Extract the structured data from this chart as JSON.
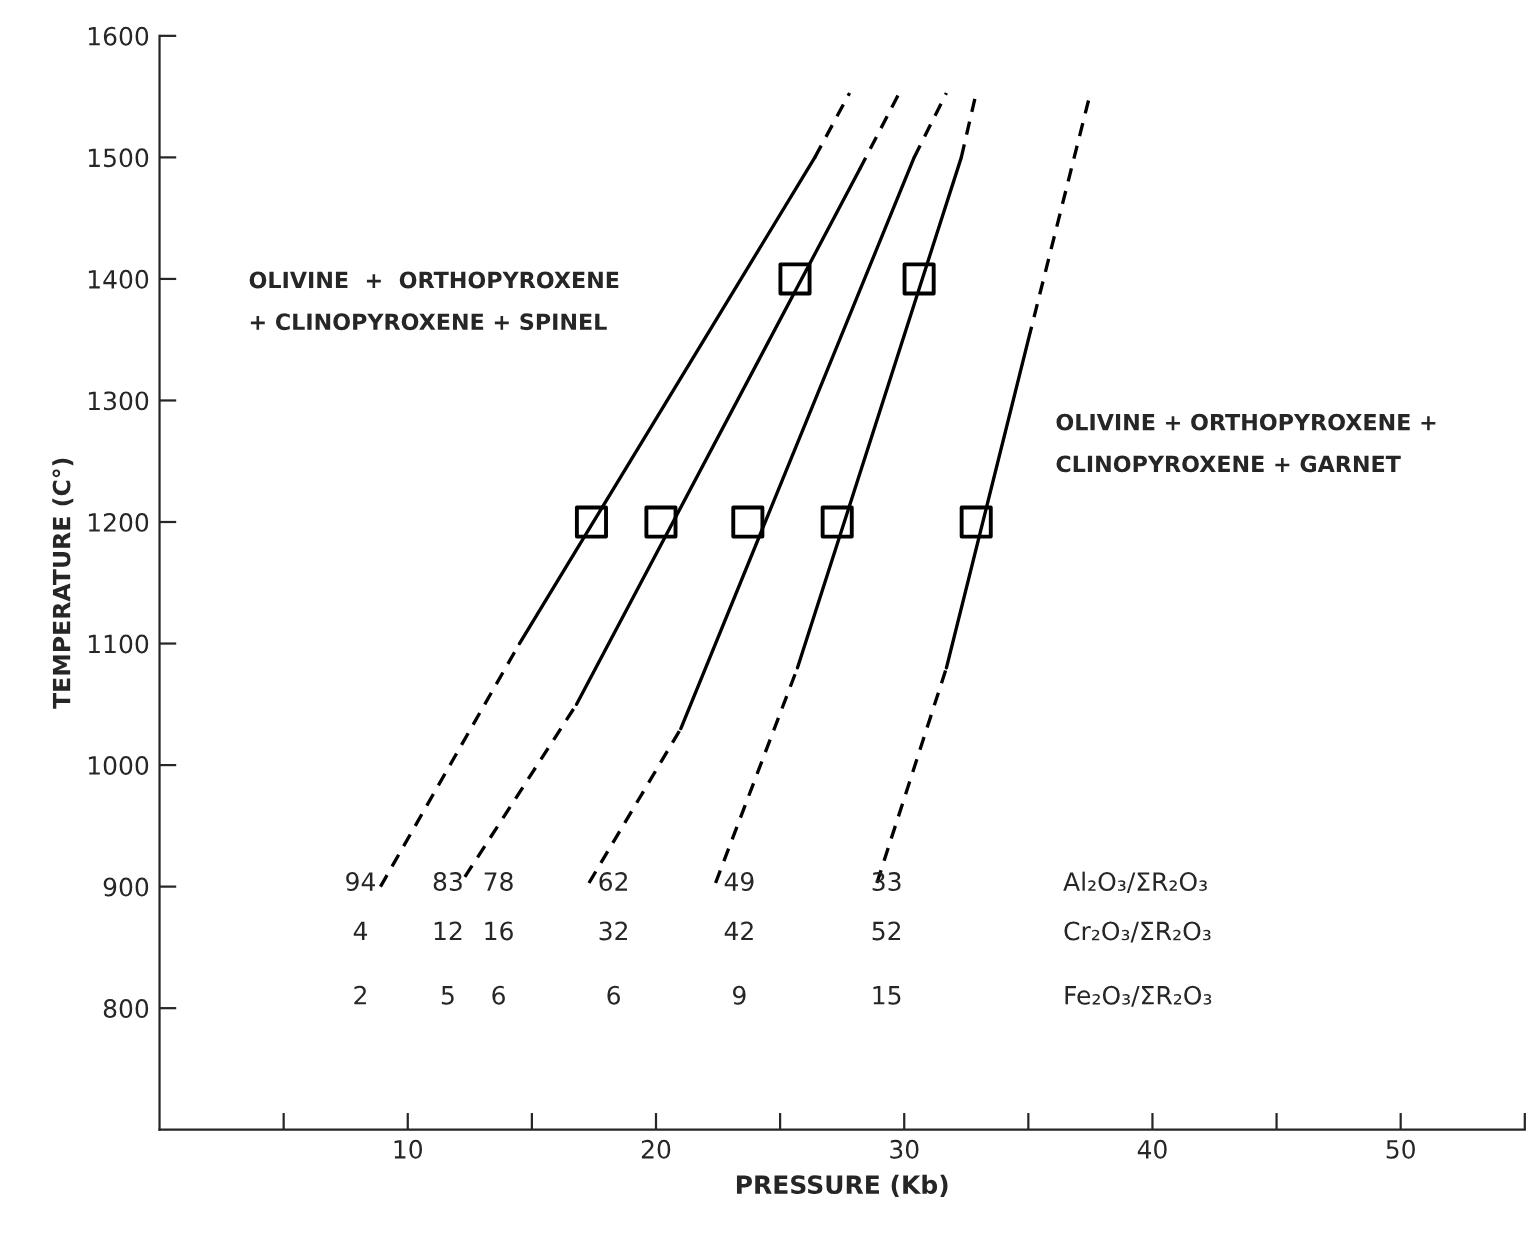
{
  "chart_data": {
    "type": "line",
    "xlabel": "PRESSURE (Kb)",
    "ylabel": "TEMPERATURE (C°)",
    "xlim": [
      0,
      55
    ],
    "ylim": [
      700,
      1600
    ],
    "xticks": [
      {
        "value": 5,
        "label": null
      },
      10,
      {
        "value": 15,
        "label": null
      },
      20,
      {
        "value": 25,
        "label": null
      },
      30,
      {
        "value": 35,
        "label": null
      },
      40,
      {
        "value": 45,
        "label": null
      },
      50,
      {
        "value": 55,
        "label": null
      }
    ],
    "yticks": [
      800,
      900,
      1000,
      1100,
      1200,
      1300,
      1400,
      1500,
      1600
    ],
    "grid": false,
    "legend": false,
    "series": [
      {
        "line_style": "dashed",
        "color": "#000000",
        "x": [
          8.9,
          14.5
        ],
        "values": [
          900,
          1100
        ]
      },
      {
        "line_style": "solid",
        "color": "#000000",
        "x": [
          14.5,
          26.4
        ],
        "values": [
          1100,
          1500
        ]
      },
      {
        "line_style": "dashed",
        "color": "#000000",
        "x": [
          26.4,
          27.8
        ],
        "values": [
          1500,
          1553
        ]
      },
      {
        "line_style": "dashed",
        "color": "#000000",
        "x": [
          12.3,
          16.8
        ],
        "values": [
          908,
          1050
        ]
      },
      {
        "line_style": "solid",
        "color": "#000000",
        "x": [
          16.8,
          28.2
        ],
        "values": [
          1050,
          1490
        ]
      },
      {
        "line_style": "dashed",
        "color": "#000000",
        "x": [
          28.2,
          29.8
        ],
        "values": [
          1490,
          1553
        ]
      },
      {
        "line_style": "dashed",
        "color": "#000000",
        "x": [
          17.3,
          21.0
        ],
        "values": [
          903,
          1030
        ]
      },
      {
        "line_style": "solid",
        "color": "#000000",
        "x": [
          21.0,
          30.4
        ],
        "values": [
          1030,
          1500
        ]
      },
      {
        "line_style": "dashed",
        "color": "#000000",
        "x": [
          30.4,
          31.7
        ],
        "values": [
          1500,
          1553
        ]
      },
      {
        "line_style": "dashed",
        "color": "#000000",
        "x": [
          22.4,
          25.7
        ],
        "values": [
          903,
          1080
        ]
      },
      {
        "line_style": "solid",
        "color": "#000000",
        "x": [
          25.7,
          32.3
        ],
        "values": [
          1080,
          1500
        ]
      },
      {
        "line_style": "dashed",
        "color": "#000000",
        "x": [
          32.3,
          32.9
        ],
        "values": [
          1500,
          1553
        ]
      },
      {
        "line_style": "dashed",
        "color": "#000000",
        "x": [
          28.9,
          31.7
        ],
        "values": [
          903,
          1080
        ]
      },
      {
        "line_style": "solid",
        "color": "#000000",
        "x": [
          31.7,
          35.0
        ],
        "values": [
          1080,
          1350
        ]
      },
      {
        "line_style": "dashed",
        "color": "#000000",
        "x": [
          35.0,
          37.5
        ],
        "values": [
          1350,
          1553
        ]
      },
      {
        "type": "scatter",
        "marker": "square",
        "color": "#000000",
        "x": [
          17.4,
          20.2,
          23.7,
          27.3,
          32.9,
          25.6,
          30.6
        ],
        "values": [
          1200,
          1200,
          1200,
          1200,
          1200,
          1400,
          1400
        ]
      }
    ],
    "annotations": [
      "OLIVINE  +  ORTHOPYROXENE\n+ CLINOPYROXENE + SPINEL",
      "OLIVINE + ORTHOPYROXENE +\nCLINOPYROXENE + GARNET",
      "94",
      "83",
      "78",
      "62",
      "49",
      "33",
      "Al₂O₃/ΣR₂O₃",
      "4",
      "12",
      "16",
      "32",
      "42",
      "52",
      "Cr₂O₃/ΣR₂O₃",
      "2",
      "5",
      "6",
      "6",
      "9",
      "15",
      "Fe₂O₃/ΣR₂O₃"
    ]
  }
}
